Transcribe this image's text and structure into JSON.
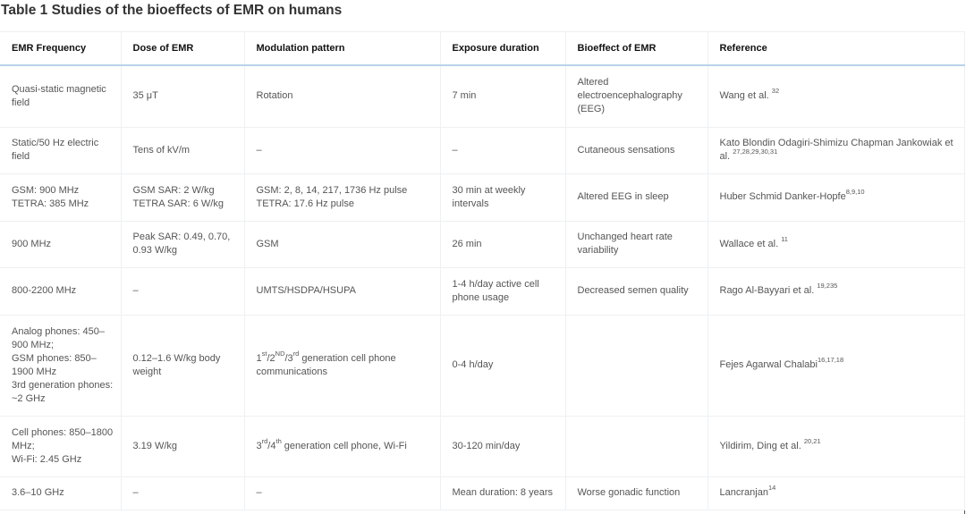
{
  "title": "Table 1  Studies of the bioeffects of EMR on humans",
  "columns": [
    "EMR Frequency",
    "Dose of EMR",
    "Modulation pattern",
    "Exposure duration",
    "Bioeffect of EMR",
    "Reference"
  ],
  "rows": [
    [
      [
        {
          "t": "Quasi-static magnetic field"
        }
      ],
      [
        {
          "t": "35 μT"
        }
      ],
      [
        {
          "t": "Rotation"
        }
      ],
      [
        {
          "t": "7 min"
        }
      ],
      [
        {
          "t": "Altered electroencephalography (EEG)"
        }
      ],
      [
        {
          "t": "Wang et al. "
        },
        {
          "t": "32",
          "sup": true
        }
      ]
    ],
    [
      [
        {
          "t": "Static/50 Hz electric field"
        }
      ],
      [
        {
          "t": "Tens of kV/m"
        }
      ],
      [
        {
          "t": "–"
        }
      ],
      [
        {
          "t": "–"
        }
      ],
      [
        {
          "t": "Cutaneous sensations"
        }
      ],
      [
        {
          "t": "Kato Blondin Odagiri-Shimizu Chapman Jankowiak et al. "
        },
        {
          "t": "27,28,29,30,31",
          "sup": true
        }
      ]
    ],
    [
      [
        {
          "t": "GSM: 900 MHz\nTETRA: 385 MHz"
        }
      ],
      [
        {
          "t": "GSM SAR: 2 W/kg\nTETRA SAR: 6 W/kg"
        }
      ],
      [
        {
          "t": "GSM: 2, 8, 14, 217, 1736 Hz pulse\nTETRA: 17.6 Hz pulse"
        }
      ],
      [
        {
          "t": "30 min at weekly intervals"
        }
      ],
      [
        {
          "t": "Altered EEG in sleep"
        }
      ],
      [
        {
          "t": "Huber Schmid Danker-Hopfe"
        },
        {
          "t": "8,9,10",
          "sup": true
        }
      ]
    ],
    [
      [
        {
          "t": "900 MHz"
        }
      ],
      [
        {
          "t": "Peak SAR: 0.49, 0.70, 0.93 W/kg"
        }
      ],
      [
        {
          "t": "GSM"
        }
      ],
      [
        {
          "t": "26 min"
        }
      ],
      [
        {
          "t": "Unchanged heart rate variability"
        }
      ],
      [
        {
          "t": "Wallace et al. "
        },
        {
          "t": "11",
          "sup": true
        }
      ]
    ],
    [
      [
        {
          "t": "800-2200 MHz"
        }
      ],
      [
        {
          "t": "–"
        }
      ],
      [
        {
          "t": "UMTS/HSDPA/HSUPA"
        }
      ],
      [
        {
          "t": "1-4 h/day active cell phone usage"
        }
      ],
      [
        {
          "t": "Decreased semen quality"
        }
      ],
      [
        {
          "t": "Rago Al-Bayyari et al. "
        },
        {
          "t": "19,235",
          "sup": true
        }
      ]
    ],
    [
      [
        {
          "t": "Analog phones: 450–900 MHz;\nGSM phones: 850–1900 MHz\n3rd generation phones: ~2 GHz"
        }
      ],
      [
        {
          "t": "0.12–1.6 W/kg body weight"
        }
      ],
      [
        {
          "t": "1"
        },
        {
          "t": "st",
          "sup": true
        },
        {
          "t": "/2"
        },
        {
          "t": "ND",
          "sup": true
        },
        {
          "t": "/3"
        },
        {
          "t": "rd",
          "sup": true
        },
        {
          "t": " generation cell phone communications"
        }
      ],
      [
        {
          "t": "0-4 h/day"
        }
      ],
      [],
      [
        {
          "t": "Fejes Agarwal Chalabi"
        },
        {
          "t": "16,17,18",
          "sup": true
        }
      ]
    ],
    [
      [
        {
          "t": "Cell phones: 850–1800 MHz;\nWi-Fi: 2.45 GHz"
        }
      ],
      [
        {
          "t": "3.19 W/kg"
        }
      ],
      [
        {
          "t": "3"
        },
        {
          "t": "rd",
          "sup": true
        },
        {
          "t": "/4"
        },
        {
          "t": "th",
          "sup": true
        },
        {
          "t": " generation cell phone, Wi-Fi"
        }
      ],
      [
        {
          "t": "30-120 min/day"
        }
      ],
      [],
      [
        {
          "t": "Yildirim, Ding et al. "
        },
        {
          "t": "20,21",
          "sup": true
        }
      ]
    ],
    [
      [
        {
          "t": "3.6–10 GHz"
        }
      ],
      [
        {
          "t": "–"
        }
      ],
      [
        {
          "t": "–"
        }
      ],
      [
        {
          "t": "Mean duration: 8 years"
        }
      ],
      [
        {
          "t": "Worse gonadic function"
        }
      ],
      [
        {
          "t": "Lancranjan"
        },
        {
          "t": "14",
          "sup": true
        }
      ]
    ]
  ],
  "colors": {
    "header_rule": "#b9d3ea",
    "grid": "#eef0f2",
    "text": "#555555"
  }
}
